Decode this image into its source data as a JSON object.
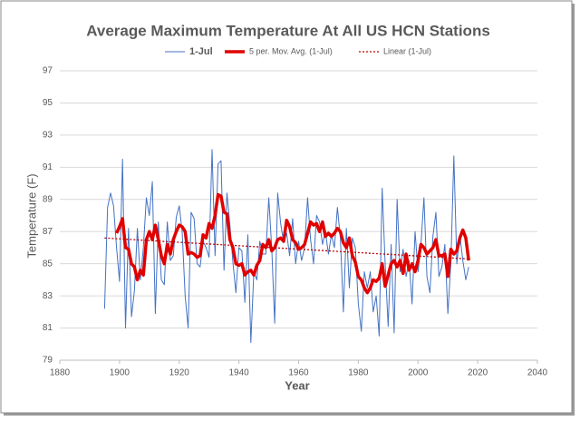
{
  "chart_data": {
    "type": "line",
    "title": "Average Maximum Temperature At All US HCN Stations",
    "x_label": "Year",
    "y_label": "Temperature (F)",
    "x": [
      1895,
      1896,
      1897,
      1898,
      1899,
      1900,
      1901,
      1902,
      1903,
      1904,
      1905,
      1906,
      1907,
      1908,
      1909,
      1910,
      1911,
      1912,
      1913,
      1914,
      1915,
      1916,
      1917,
      1918,
      1919,
      1920,
      1921,
      1922,
      1923,
      1924,
      1925,
      1926,
      1927,
      1928,
      1929,
      1930,
      1931,
      1932,
      1933,
      1934,
      1935,
      1936,
      1937,
      1938,
      1939,
      1940,
      1941,
      1942,
      1943,
      1944,
      1945,
      1946,
      1947,
      1948,
      1949,
      1950,
      1951,
      1952,
      1953,
      1954,
      1955,
      1956,
      1957,
      1958,
      1959,
      1960,
      1961,
      1962,
      1963,
      1964,
      1965,
      1966,
      1967,
      1968,
      1969,
      1970,
      1971,
      1972,
      1973,
      1974,
      1975,
      1976,
      1977,
      1978,
      1979,
      1980,
      1981,
      1982,
      1983,
      1984,
      1985,
      1986,
      1987,
      1988,
      1989,
      1990,
      1991,
      1992,
      1993,
      1994,
      1995,
      1996,
      1997,
      1998,
      1999,
      2000,
      2001,
      2002,
      2003,
      2004,
      2005,
      2006,
      2007,
      2008,
      2009,
      2010,
      2011,
      2012,
      2013,
      2014,
      2015,
      2016,
      2017
    ],
    "series": [
      {
        "name": "1-Jul",
        "color": "#4472c4",
        "width": 1,
        "dash": false,
        "values": [
          82.2,
          88.5,
          89.4,
          88.6,
          86.0,
          83.9,
          91.5,
          81.0,
          87.2,
          81.7,
          83.3,
          87.2,
          84.0,
          86.0,
          89.1,
          88.0,
          90.1,
          81.9,
          87.6,
          84.0,
          83.7,
          87.6,
          85.2,
          85.5,
          87.9,
          88.6,
          87.0,
          83.0,
          81.0,
          88.2,
          87.8,
          85.0,
          84.8,
          86.4,
          86.0,
          85.4,
          92.1,
          85.5,
          91.2,
          91.4,
          84.6,
          89.4,
          87.4,
          85.1,
          83.2,
          86.0,
          85.8,
          82.6,
          86.8,
          80.1,
          84.5,
          84.0,
          86.4,
          85.6,
          85.6,
          89.1,
          85.9,
          81.3,
          89.4,
          87.5,
          86.3,
          86.9,
          85.5,
          87.8,
          85.0,
          86.4,
          85.2,
          86.0,
          89.1,
          86.5,
          85.0,
          88.0,
          87.6,
          86.2,
          87.0,
          85.6,
          86.8,
          86.0,
          88.5,
          86.6,
          82.0,
          87.2,
          83.5,
          86.6,
          86.0,
          82.5,
          80.8,
          84.5,
          83.5,
          84.5,
          82.0,
          83.0,
          80.5,
          89.7,
          85.0,
          81.1,
          86.2,
          80.7,
          89.0,
          84.5,
          85.9,
          84.2,
          85.2,
          82.5,
          87.0,
          84.5,
          86.2,
          89.1,
          84.2,
          83.2,
          86.7,
          88.2,
          84.2,
          84.8,
          86.2,
          81.9,
          85.0,
          91.7,
          85.0,
          86.8,
          85.2,
          84.0,
          84.8
        ]
      },
      {
        "name": "5 per. Mov. Avg. (1-Jul)",
        "color": "#e00000",
        "width": 3.5,
        "dash": false,
        "values": [
          null,
          null,
          null,
          null,
          86.9,
          87.3,
          87.8,
          86.0,
          85.9,
          85.0,
          84.8,
          84.0,
          84.6,
          84.3,
          86.5,
          87.0,
          86.5,
          87.4,
          86.5,
          85.5,
          85.0,
          86.2,
          85.6,
          86.5,
          87.0,
          87.4,
          87.3,
          87.0,
          85.6,
          85.7,
          85.6,
          85.4,
          85.5,
          86.8,
          86.6,
          87.5,
          87.2,
          88.0,
          89.3,
          89.2,
          88.2,
          88.1,
          86.5,
          86.0,
          85.0,
          84.9,
          85.0,
          84.3,
          84.5,
          84.6,
          84.3,
          84.9,
          85.2,
          86.2,
          86.0,
          86.5,
          85.8,
          86.0,
          86.5,
          86.6,
          86.4,
          87.7,
          87.3,
          86.5,
          86.3,
          85.9,
          86.0,
          86.2,
          86.9,
          87.6,
          87.4,
          87.5,
          87.0,
          87.6,
          86.7,
          86.9,
          86.7,
          86.9,
          87.2,
          87.0,
          86.3,
          86.0,
          86.6,
          85.5,
          85.1,
          84.2,
          84.0,
          83.5,
          83.2,
          83.5,
          84.0,
          83.9,
          84.1,
          85.0,
          83.6,
          84.3,
          85.0,
          85.2,
          84.8,
          85.2,
          84.4,
          85.6,
          84.6,
          85.0,
          84.5,
          85.2,
          86.2,
          86.0,
          85.6,
          85.8,
          86.0,
          86.5,
          85.5,
          85.5,
          85.6,
          84.2,
          85.9,
          85.6,
          85.8,
          86.6,
          87.1,
          86.6,
          85.2
        ]
      },
      {
        "name": "Linear (1-Jul)",
        "color": "#c00000",
        "width": 1.3,
        "dash": true,
        "x": [
          1895,
          2017
        ],
        "values": [
          86.6,
          85.3
        ]
      }
    ],
    "xlim": [
      1880,
      2040
    ],
    "xticks": [
      1880,
      1900,
      1920,
      1940,
      1960,
      1980,
      2000,
      2020,
      2040
    ],
    "ylim": [
      79,
      97
    ],
    "yticks": [
      79,
      81,
      83,
      85,
      87,
      89,
      91,
      93,
      95,
      97
    ],
    "grid": true,
    "legend": "top"
  }
}
